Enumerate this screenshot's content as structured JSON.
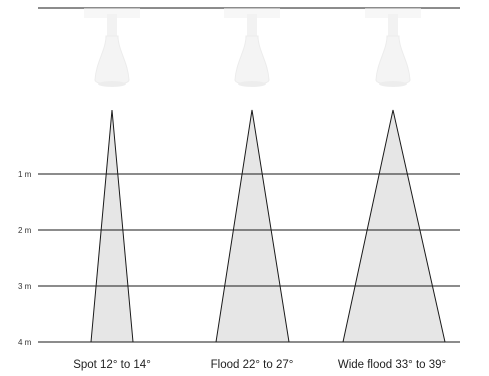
{
  "depth_markers": [
    "1 m",
    "2 m",
    "3 m",
    "4 m"
  ],
  "beams": [
    {
      "label": "Spot 12° to 14°"
    },
    {
      "label": "Flood 22° to 27°"
    },
    {
      "label": "Wide flood 33° to 39°"
    }
  ],
  "colors": {
    "line": "#1a1a1a",
    "beam_fill": "#e6e6e6",
    "fixture": "#ececec"
  }
}
